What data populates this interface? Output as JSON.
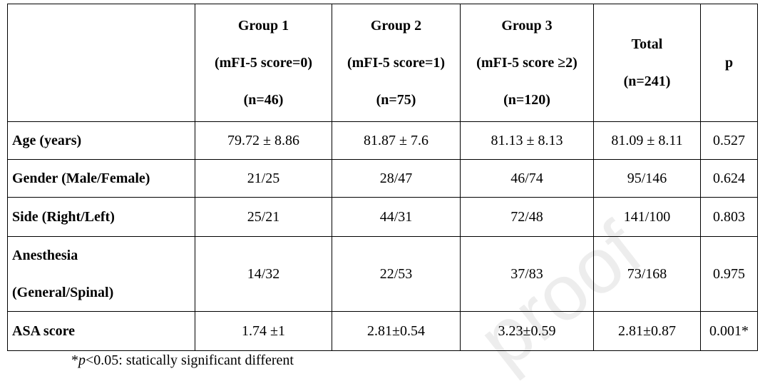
{
  "table": {
    "header": [
      [
        "Group 1",
        "(mFI-5 score=0)",
        "(n=46)"
      ],
      [
        "Group 2",
        "(mFI-5 score=1)",
        "(n=75)"
      ],
      [
        "Group 3",
        "(mFI-5 score ≥2)",
        "(n=120)"
      ],
      [
        "Total",
        "(n=241)"
      ],
      [
        "p"
      ]
    ],
    "rows": [
      {
        "label": [
          "Age (years)"
        ],
        "cells": [
          "79.72 ± 8.86",
          "81.87 ± 7.6",
          "81.13 ± 8.13",
          "81.09 ± 8.11",
          "0.527"
        ]
      },
      {
        "label": [
          "Gender (Male/Female)"
        ],
        "cells": [
          "21/25",
          "28/47",
          "46/74",
          "95/146",
          "0.624"
        ]
      },
      {
        "label": [
          "Side (Right/Left)"
        ],
        "cells": [
          "25/21",
          "44/31",
          "72/48",
          "141/100",
          "0.803"
        ]
      },
      {
        "label": [
          "Anesthesia",
          "(General/Spinal)"
        ],
        "cells": [
          "14/32",
          "22/53",
          "37/83",
          "73/168",
          "0.975"
        ]
      },
      {
        "label": [
          "ASA score"
        ],
        "cells": [
          "1.74 ±1",
          "2.81±0.54",
          "3.23±0.59",
          "2.81±0.87",
          "0.001*"
        ]
      }
    ]
  },
  "footnote": {
    "mark": "*",
    "symbol": "p",
    "text": "<0.05: statically significant different"
  },
  "watermark": "proof"
}
